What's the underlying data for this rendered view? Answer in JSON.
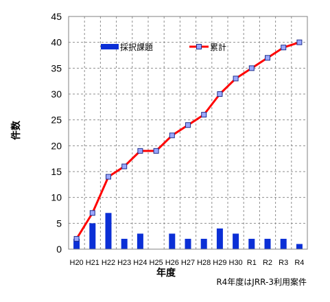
{
  "chart_data": {
    "type": "bar",
    "xlabel": "年度",
    "ylabel": "件数",
    "note": "R4年度はJRR-3利用案件",
    "categories": [
      "H20",
      "H21",
      "H22",
      "H23",
      "H24",
      "H25",
      "H26",
      "H27",
      "H28",
      "H29",
      "H30",
      "R1",
      "R2",
      "R3",
      "R4"
    ],
    "y_ticks": [
      "0",
      "5",
      "10",
      "15",
      "20",
      "25",
      "30",
      "35",
      "40",
      "45"
    ],
    "ylim": [
      0,
      45
    ],
    "grid": true,
    "legend_placement": "top-center",
    "series": [
      {
        "name": "採択課題",
        "type": "bar",
        "color": "#0b2fd6",
        "values": [
          2,
          5,
          7,
          2,
          3,
          0,
          3,
          2,
          2,
          4,
          3,
          2,
          2,
          2,
          1
        ]
      },
      {
        "name": "累計",
        "type": "line",
        "color": "#ff0000",
        "marker_color": "#9aa7ff",
        "marker_stroke": "#1f2f8a",
        "values": [
          2,
          7,
          14,
          16,
          19,
          19,
          22,
          24,
          26,
          30,
          33,
          35,
          37,
          39,
          40
        ]
      }
    ]
  }
}
